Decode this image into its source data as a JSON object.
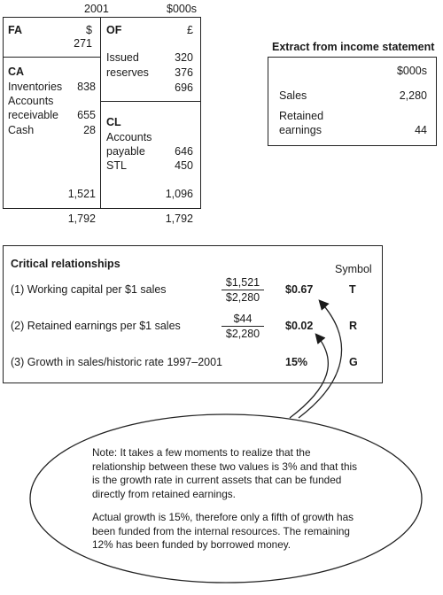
{
  "balance_sheet": {
    "year": "2001",
    "unit": "$000s",
    "fa": {
      "label": "FA",
      "currency": "$",
      "value": "271"
    },
    "of": {
      "label": "OF",
      "currency": "£",
      "rows": [
        {
          "label": "Issued",
          "value": "320"
        },
        {
          "label": "reserves",
          "value": "376"
        }
      ],
      "total": "696"
    },
    "ca": {
      "label": "CA",
      "rows": [
        {
          "label": "Inventories",
          "value": "838"
        },
        {
          "label": "Accounts",
          "value": ""
        },
        {
          "label": "receivable",
          "value": "655"
        },
        {
          "label": "Cash",
          "value": "28"
        }
      ],
      "total": "1,521"
    },
    "cl": {
      "label": "CL",
      "rows": [
        {
          "label": "Accounts",
          "value": ""
        },
        {
          "label": "payable",
          "value": "646"
        },
        {
          "label": "STL",
          "value": "450"
        }
      ],
      "total": "1,096"
    },
    "left_total": "1,792",
    "right_total": "1,792"
  },
  "income_extract": {
    "title": "Extract from income statement",
    "unit": "$000s",
    "sales_label": "Sales",
    "sales_value": "2,280",
    "re_label_1": "Retained",
    "re_label_2": "earnings",
    "re_value": "44"
  },
  "critical": {
    "title": "Critical relationships",
    "symbol_header": "Symbol",
    "rows": [
      {
        "label": "(1) Working capital per $1 sales",
        "num": "$1,521",
        "den": "$2,280",
        "result": "$0.67",
        "symbol": "T"
      },
      {
        "label": "(2) Retained earnings per $1 sales",
        "num": "$44",
        "den": "$2,280",
        "result": "$0.02",
        "symbol": "R"
      },
      {
        "label": "(3) Growth in sales/historic rate 1997–2001",
        "result": "15%",
        "symbol": "G"
      }
    ]
  },
  "note": {
    "p1": "Note: It takes a few moments to realize that the relationship between these two values is 3% and that this is the growth rate in current assets that can be funded directly from retained earnings.",
    "p2": "Actual growth is 15%, therefore only a fifth of growth has been funded from the internal resources. The remaining 12% has been funded by borrowed money."
  }
}
